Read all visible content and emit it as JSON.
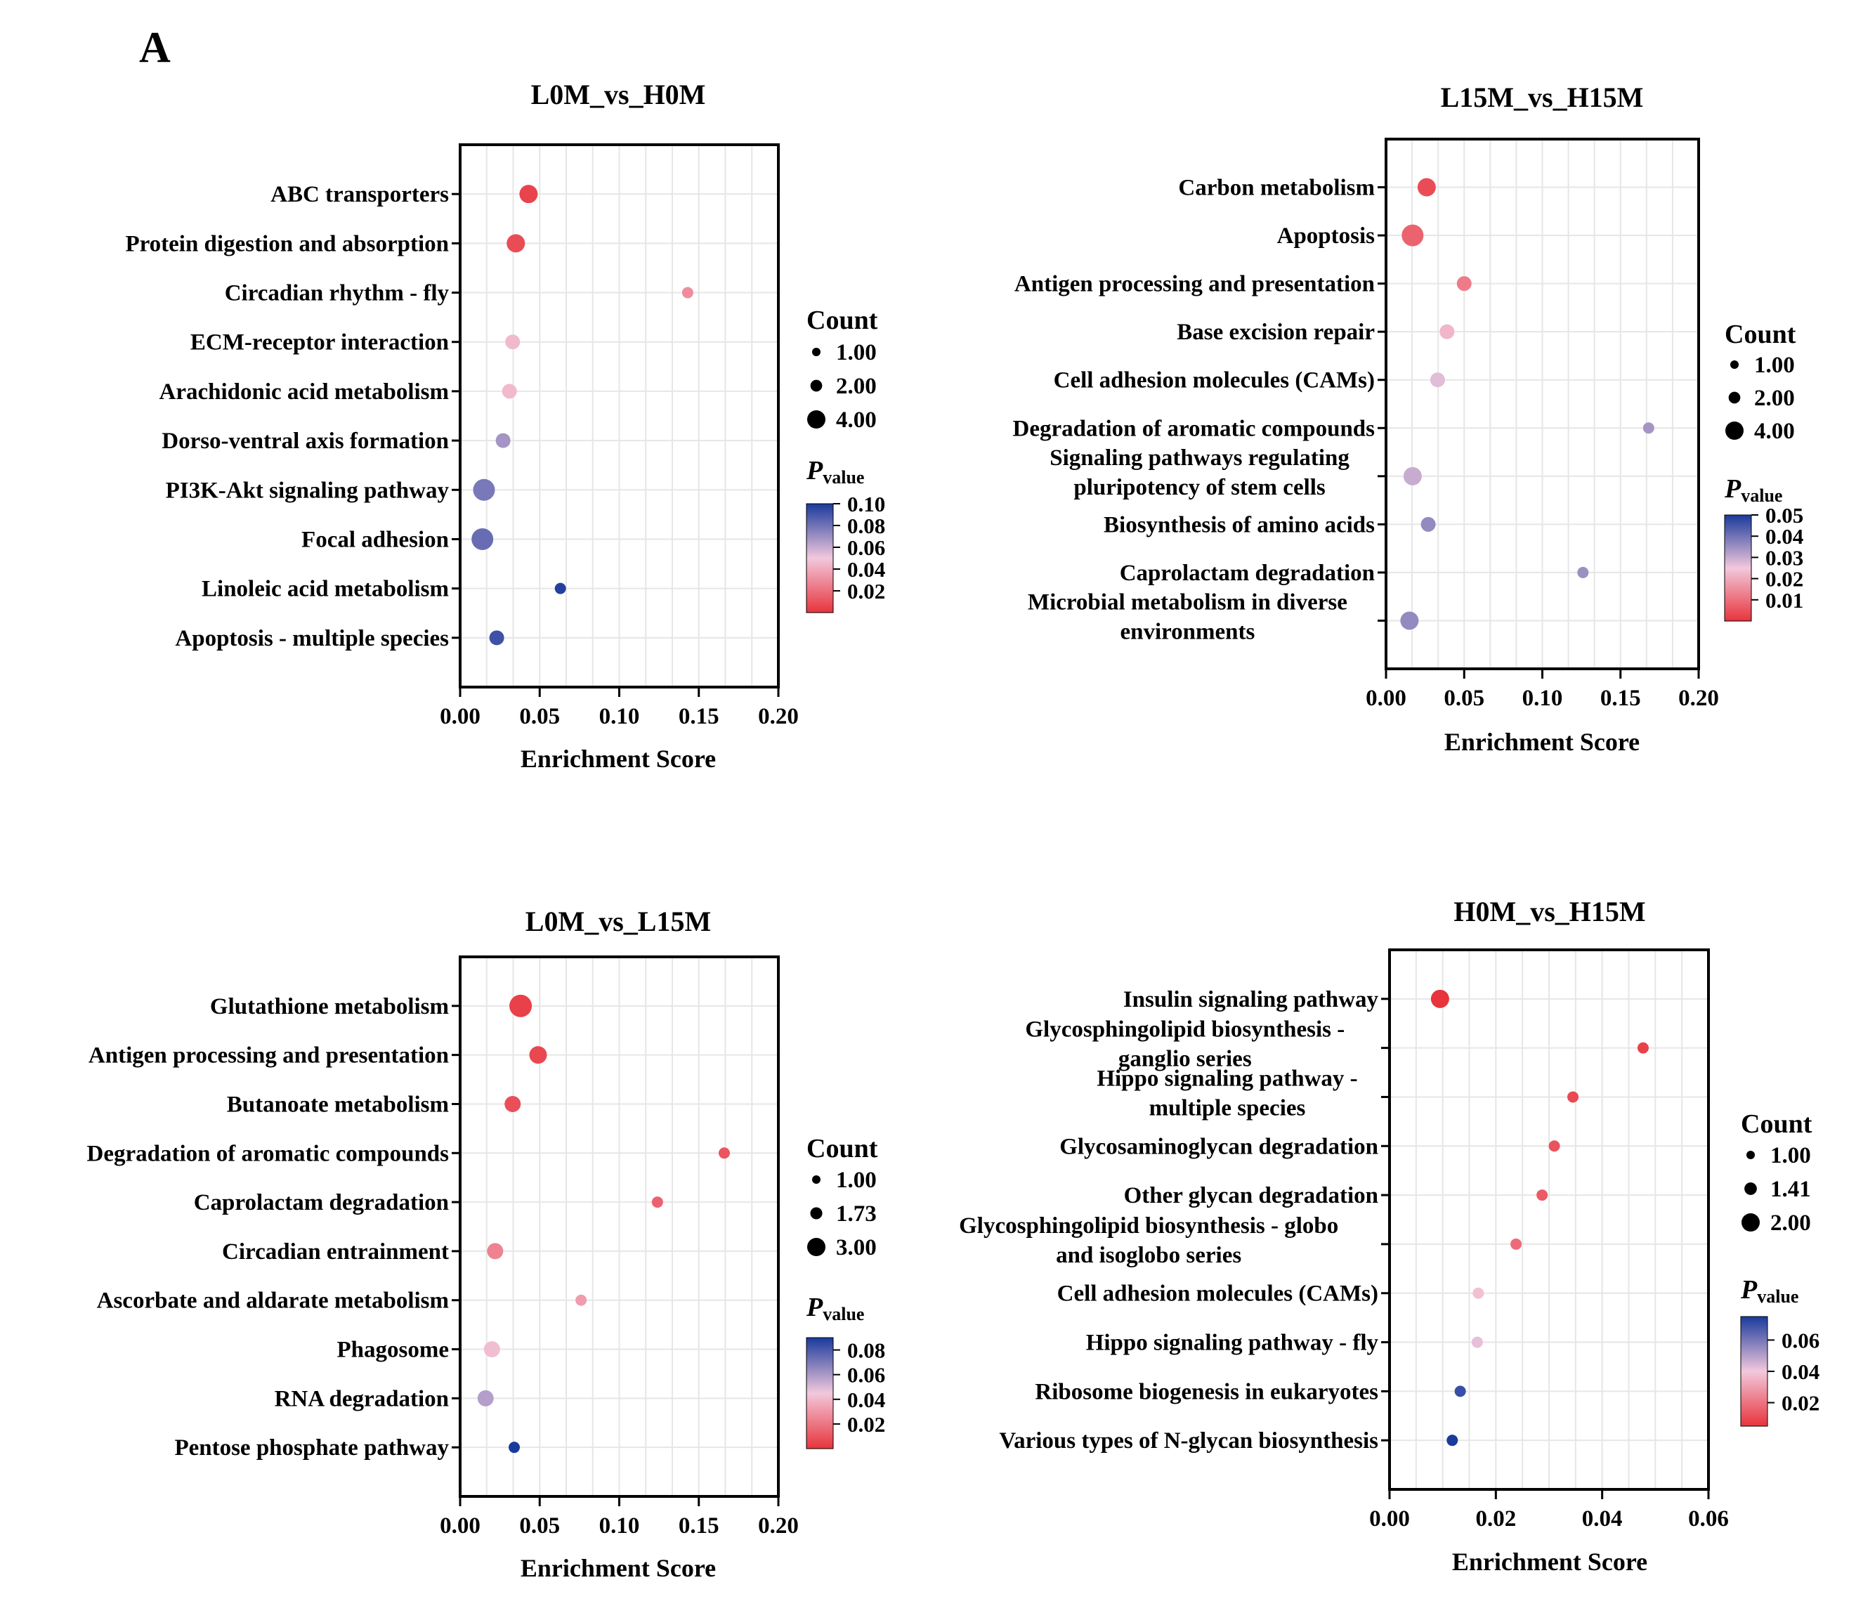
{
  "figure_label": "A",
  "colors": {
    "low": "#e8343c",
    "mid": "#f2c8dc",
    "high": "#1a3a9c",
    "axis": "#000000",
    "grid": "#e6e6e6"
  },
  "chart_data": [
    {
      "type": "scatter",
      "title": "L0M_vs_H0M",
      "xlabel": "Enrichment Score",
      "xlim": [
        0,
        0.2
      ],
      "xticks": [
        "0.00",
        "0.05",
        "0.10",
        "0.15",
        "0.20"
      ],
      "categories": [
        "ABC transporters",
        "Protein digestion and absorption",
        "Circadian rhythm - fly",
        "ECM-receptor interaction",
        "Arachidonic acid metabolism",
        "Dorso-ventral axis formation",
        "PI3K-Akt signaling pathway",
        "Focal adhesion",
        "Linoleic acid metabolism",
        "Apoptosis - multiple species"
      ],
      "x": [
        0.043,
        0.035,
        0.143,
        0.033,
        0.031,
        0.027,
        0.015,
        0.014,
        0.063,
        0.023
      ],
      "count": [
        2,
        2,
        1,
        1.5,
        1.5,
        1.5,
        2.5,
        2.5,
        1,
        1.5
      ],
      "pvalue": [
        0.005,
        0.008,
        0.03,
        0.045,
        0.045,
        0.068,
        0.078,
        0.082,
        0.098,
        0.092
      ],
      "count_legend_title": "Count",
      "count_legend": [
        "1.00",
        "2.00",
        "4.00"
      ],
      "count_legend_values": [
        1,
        2,
        4
      ],
      "p_title": "P",
      "p_sub": "value",
      "p_range": [
        0.0,
        0.1
      ],
      "p_ticks": [
        "0.10",
        "0.08",
        "0.06",
        "0.04",
        "0.02"
      ]
    },
    {
      "type": "scatter",
      "title": "L15M_vs_H15M",
      "xlabel": "Enrichment Score",
      "xlim": [
        0,
        0.2
      ],
      "xticks": [
        "0.00",
        "0.05",
        "0.10",
        "0.15",
        "0.20"
      ],
      "categories": [
        "Carbon metabolism",
        "Apoptosis",
        "Antigen processing and presentation",
        "Base excision repair",
        "Cell adhesion molecules (CAMs)",
        "Degradation of aromatic compounds",
        "Signaling pathways regulating\npluripotency of stem cells",
        "Biosynthesis of amino acids",
        "Caprolactam degradation",
        "Microbial metabolism in diverse\nenvironments"
      ],
      "x": [
        0.026,
        0.017,
        0.05,
        0.039,
        0.033,
        0.168,
        0.017,
        0.027,
        0.126,
        0.015
      ],
      "count": [
        2,
        2.5,
        1.5,
        1.5,
        1.5,
        1,
        2,
        1.5,
        1,
        2
      ],
      "pvalue": [
        0.004,
        0.008,
        0.012,
        0.022,
        0.027,
        0.034,
        0.03,
        0.036,
        0.035,
        0.036
      ],
      "count_legend_title": "Count",
      "count_legend": [
        "1.00",
        "2.00",
        "4.00"
      ],
      "count_legend_values": [
        1,
        2,
        4
      ],
      "p_title": "P",
      "p_sub": "value",
      "p_range": [
        0.0,
        0.05
      ],
      "p_ticks": [
        "0.05",
        "0.04",
        "0.03",
        "0.02",
        "0.01"
      ]
    },
    {
      "type": "scatter",
      "title": "L0M_vs_L15M",
      "xlabel": "Enrichment Score",
      "xlim": [
        0,
        0.2
      ],
      "xticks": [
        "0.00",
        "0.05",
        "0.10",
        "0.15",
        "0.20"
      ],
      "categories": [
        "Glutathione metabolism",
        "Antigen processing and presentation",
        "Butanoate metabolism",
        "Degradation of aromatic compounds",
        "Caprolactam degradation",
        "Circadian entrainment",
        "Ascorbate and aldarate metabolism",
        "Phagosome",
        "RNA degradation",
        "Pentose phosphate pathway"
      ],
      "x": [
        0.038,
        0.049,
        0.033,
        0.166,
        0.124,
        0.022,
        0.076,
        0.02,
        0.016,
        0.034
      ],
      "count": [
        2.6,
        1.9,
        1.7,
        1,
        1,
        1.7,
        1,
        1.7,
        1.7,
        1
      ],
      "pvalue": [
        0.004,
        0.006,
        0.008,
        0.01,
        0.014,
        0.024,
        0.032,
        0.042,
        0.058,
        0.09
      ],
      "count_legend_title": "Count",
      "count_legend": [
        "1.00",
        "1.73",
        "3.00"
      ],
      "count_legend_values": [
        1,
        1.73,
        3
      ],
      "p_title": "P",
      "p_sub": "value",
      "p_range": [
        0.0,
        0.09
      ],
      "p_ticks": [
        "0.08",
        "0.06",
        "0.04",
        "0.02"
      ]
    },
    {
      "type": "scatter",
      "title": "H0M_vs_H15M",
      "xlabel": "Enrichment Score",
      "xlim": [
        0,
        0.06
      ],
      "xticks": [
        "0.00",
        "0.02",
        "0.04",
        "0.06"
      ],
      "categories": [
        "Insulin signaling pathway",
        "Glycosphingolipid biosynthesis -\nganglio series",
        "Hippo signaling pathway -\nmultiple species",
        "Glycosaminoglycan degradation",
        "Other glycan degradation",
        "Glycosphingolipid biosynthesis - globo\nand isoglobo series",
        "Cell adhesion molecules (CAMs)",
        "Hippo signaling pathway - fly",
        "Ribosome biogenesis in eukaryotes",
        "Various types of N-glycan biosynthesis"
      ],
      "x": [
        0.0095,
        0.0477,
        0.0345,
        0.031,
        0.0287,
        0.0238,
        0.0167,
        0.0165,
        0.0133,
        0.0118
      ],
      "count": [
        2,
        1,
        1,
        1,
        1,
        1,
        1,
        1,
        1,
        1
      ],
      "pvalue": [
        0.005,
        0.008,
        0.01,
        0.012,
        0.014,
        0.018,
        0.038,
        0.042,
        0.07,
        0.075
      ],
      "count_legend_title": "Count",
      "count_legend": [
        "1.00",
        "1.41",
        "2.00"
      ],
      "count_legend_values": [
        1,
        1.41,
        2
      ],
      "p_title": "P",
      "p_sub": "value",
      "p_range": [
        0.005,
        0.075
      ],
      "p_ticks": [
        "0.06",
        "0.04",
        "0.02"
      ]
    }
  ]
}
